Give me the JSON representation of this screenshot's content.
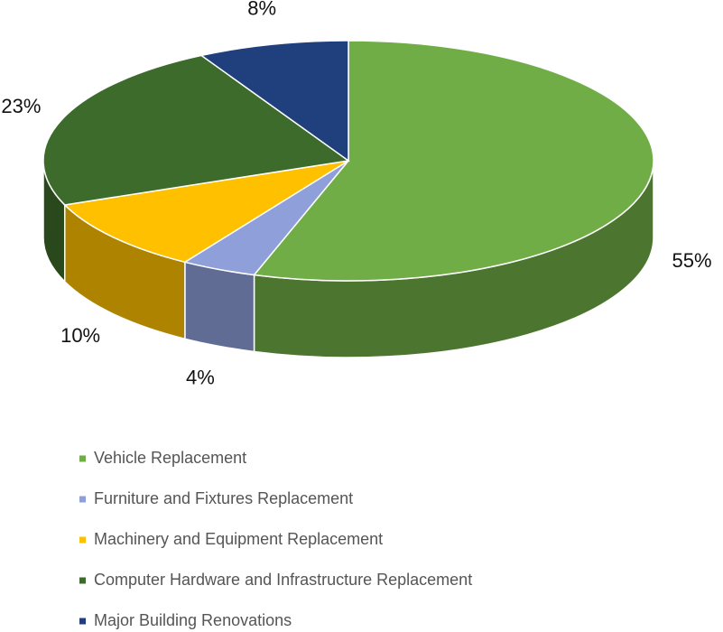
{
  "chart_data": {
    "type": "pie",
    "categories": [
      "Vehicle Replacement",
      "Furniture and Fixtures Replacement",
      "Machinery and Equipment Replacement",
      "Computer Hardware and Infrastructure Replacement",
      "Major Building Renovations"
    ],
    "values": [
      55,
      4,
      10,
      23,
      8
    ],
    "value_labels": [
      "55%",
      "4%",
      "10%",
      "23%",
      "8%"
    ],
    "colors": [
      "#70ad47",
      "#8e9fd9",
      "#ffc000",
      "#3d6b2b",
      "#203f7d"
    ],
    "legend": "bottom"
  }
}
